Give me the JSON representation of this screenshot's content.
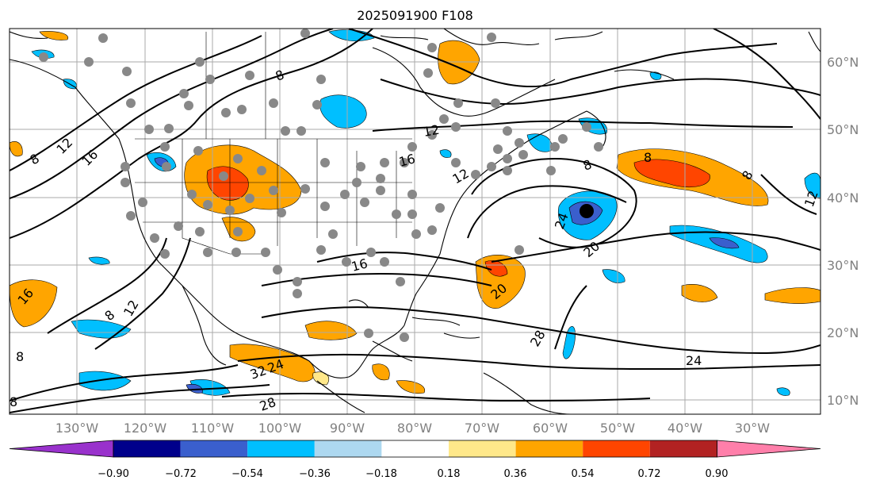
{
  "title": "2025091900 F108",
  "lon_labels": [
    "130°W",
    "120°W",
    "110°W",
    "100°W",
    "90°W",
    "80°W",
    "70°W",
    "60°W",
    "50°W",
    "40°W",
    "30°W"
  ],
  "lat_labels": [
    "60°N",
    "50°N",
    "40°N",
    "30°N",
    "20°N",
    "10°N"
  ],
  "colorbar": {
    "ticks": [
      "−0.90",
      "−0.72",
      "−0.54",
      "−0.36",
      "−0.18",
      "0.18",
      "0.36",
      "0.54",
      "0.72",
      "0.90"
    ],
    "colors": [
      "#9932CC",
      "#00008B",
      "#3A5FCD",
      "#00BFFF",
      "#ADD8F0",
      "#FFFFFF",
      "#FFE88A",
      "#FFA500",
      "#FF4500",
      "#B22222",
      "#FF7FAA"
    ]
  },
  "contour_labels": [
    "8",
    "12",
    "16",
    "8",
    "12",
    "16",
    "8",
    "12",
    "8",
    "8",
    "12",
    "16",
    "20",
    "24",
    "28",
    "32",
    "24",
    "20",
    "8",
    "8",
    "12",
    "16",
    "24",
    "28",
    "8"
  ]
}
